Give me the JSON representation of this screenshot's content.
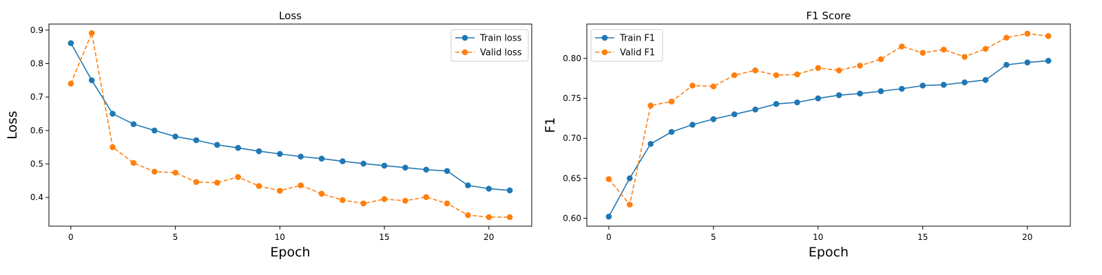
{
  "chart_data": [
    {
      "type": "line",
      "title": "Loss",
      "xlabel": "Epoch",
      "ylabel": "Loss",
      "x": [
        0,
        1,
        2,
        3,
        4,
        5,
        6,
        7,
        8,
        9,
        10,
        11,
        12,
        13,
        14,
        15,
        16,
        17,
        18,
        19,
        20,
        21
      ],
      "xlim": [
        -1.05,
        22.05
      ],
      "ylim": [
        0.314,
        0.918
      ],
      "xticks": [
        0,
        5,
        10,
        15,
        20
      ],
      "xtick_labels": [
        "0",
        "5",
        "10",
        "15",
        "20"
      ],
      "yticks": [
        0.4,
        0.5,
        0.6,
        0.7,
        0.8,
        0.9
      ],
      "ytick_labels": [
        "0.4",
        "0.5",
        "0.6",
        "0.7",
        "0.8",
        "0.9"
      ],
      "grid": false,
      "legend_position": "top-right",
      "series": [
        {
          "name": "Train loss",
          "color": "#1f77b4",
          "style": "solid",
          "values": [
            0.861,
            0.75,
            0.65,
            0.619,
            0.6,
            0.582,
            0.571,
            0.557,
            0.548,
            0.538,
            0.53,
            0.522,
            0.516,
            0.508,
            0.501,
            0.495,
            0.489,
            0.483,
            0.479,
            0.436,
            0.426,
            0.421
          ]
        },
        {
          "name": "Valid loss",
          "color": "#ff7f0e",
          "style": "dashed",
          "values": [
            0.74,
            0.891,
            0.55,
            0.503,
            0.477,
            0.474,
            0.446,
            0.444,
            0.461,
            0.434,
            0.42,
            0.436,
            0.411,
            0.392,
            0.382,
            0.395,
            0.39,
            0.401,
            0.382,
            0.347,
            0.341,
            0.341
          ]
        }
      ]
    },
    {
      "type": "line",
      "title": "F1 Score",
      "xlabel": "Epoch",
      "ylabel": "F1",
      "x": [
        0,
        1,
        2,
        3,
        4,
        5,
        6,
        7,
        8,
        9,
        10,
        11,
        12,
        13,
        14,
        15,
        16,
        17,
        18,
        19,
        20,
        21
      ],
      "xlim": [
        -1.05,
        22.05
      ],
      "ylim": [
        0.59,
        0.843
      ],
      "xticks": [
        0,
        5,
        10,
        15,
        20
      ],
      "xtick_labels": [
        "0",
        "5",
        "10",
        "15",
        "20"
      ],
      "yticks": [
        0.6,
        0.65,
        0.7,
        0.75,
        0.8
      ],
      "ytick_labels": [
        "0.60",
        "0.65",
        "0.70",
        "0.75",
        "0.80"
      ],
      "grid": false,
      "legend_position": "top-left",
      "series": [
        {
          "name": "Train F1",
          "color": "#1f77b4",
          "style": "solid",
          "values": [
            0.602,
            0.65,
            0.693,
            0.708,
            0.717,
            0.724,
            0.73,
            0.736,
            0.743,
            0.745,
            0.75,
            0.754,
            0.756,
            0.759,
            0.762,
            0.766,
            0.767,
            0.77,
            0.773,
            0.792,
            0.795,
            0.797
          ]
        },
        {
          "name": "Valid F1",
          "color": "#ff7f0e",
          "style": "dashed",
          "values": [
            0.649,
            0.617,
            0.741,
            0.746,
            0.766,
            0.765,
            0.779,
            0.785,
            0.779,
            0.78,
            0.788,
            0.785,
            0.791,
            0.799,
            0.815,
            0.807,
            0.811,
            0.802,
            0.812,
            0.826,
            0.831,
            0.828
          ]
        }
      ]
    }
  ]
}
